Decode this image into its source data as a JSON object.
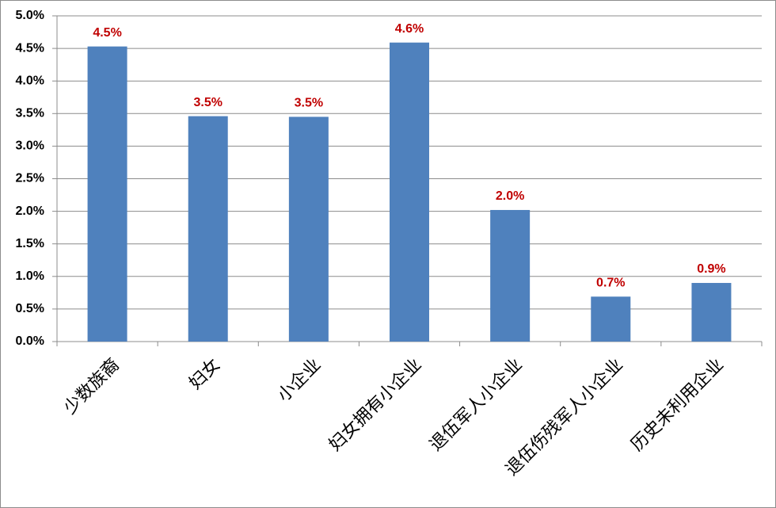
{
  "chart_data": {
    "type": "bar",
    "categories": [
      "少数族裔",
      "妇女",
      "小企业",
      "妇女拥有小企业",
      "退伍军人小企业",
      "退伍伤残军人小企业",
      "历史未利用企业"
    ],
    "values": [
      4.53,
      3.46,
      3.45,
      4.59,
      2.02,
      0.69,
      0.9
    ],
    "value_labels": [
      "4.5%",
      "3.5%",
      "3.5%",
      "4.6%",
      "2.0%",
      "0.7%",
      "0.9%"
    ],
    "color": "#4f81bd",
    "ylim": [
      0,
      5
    ],
    "yticks": [
      {
        "value": 0,
        "label": "0.0%"
      },
      {
        "value": 0.5,
        "label": "0.5%"
      },
      {
        "value": 1,
        "label": "1.0%"
      },
      {
        "value": 1.5,
        "label": "1.5%"
      },
      {
        "value": 2,
        "label": "2.0%"
      },
      {
        "value": 2.5,
        "label": "2.5%"
      },
      {
        "value": 3,
        "label": "3.0%"
      },
      {
        "value": 3.5,
        "label": "3.5%"
      },
      {
        "value": 4,
        "label": "4.0%"
      },
      {
        "value": 4.5,
        "label": "4.5%"
      },
      {
        "value": 5,
        "label": "5.0%"
      }
    ],
    "grid": true
  }
}
